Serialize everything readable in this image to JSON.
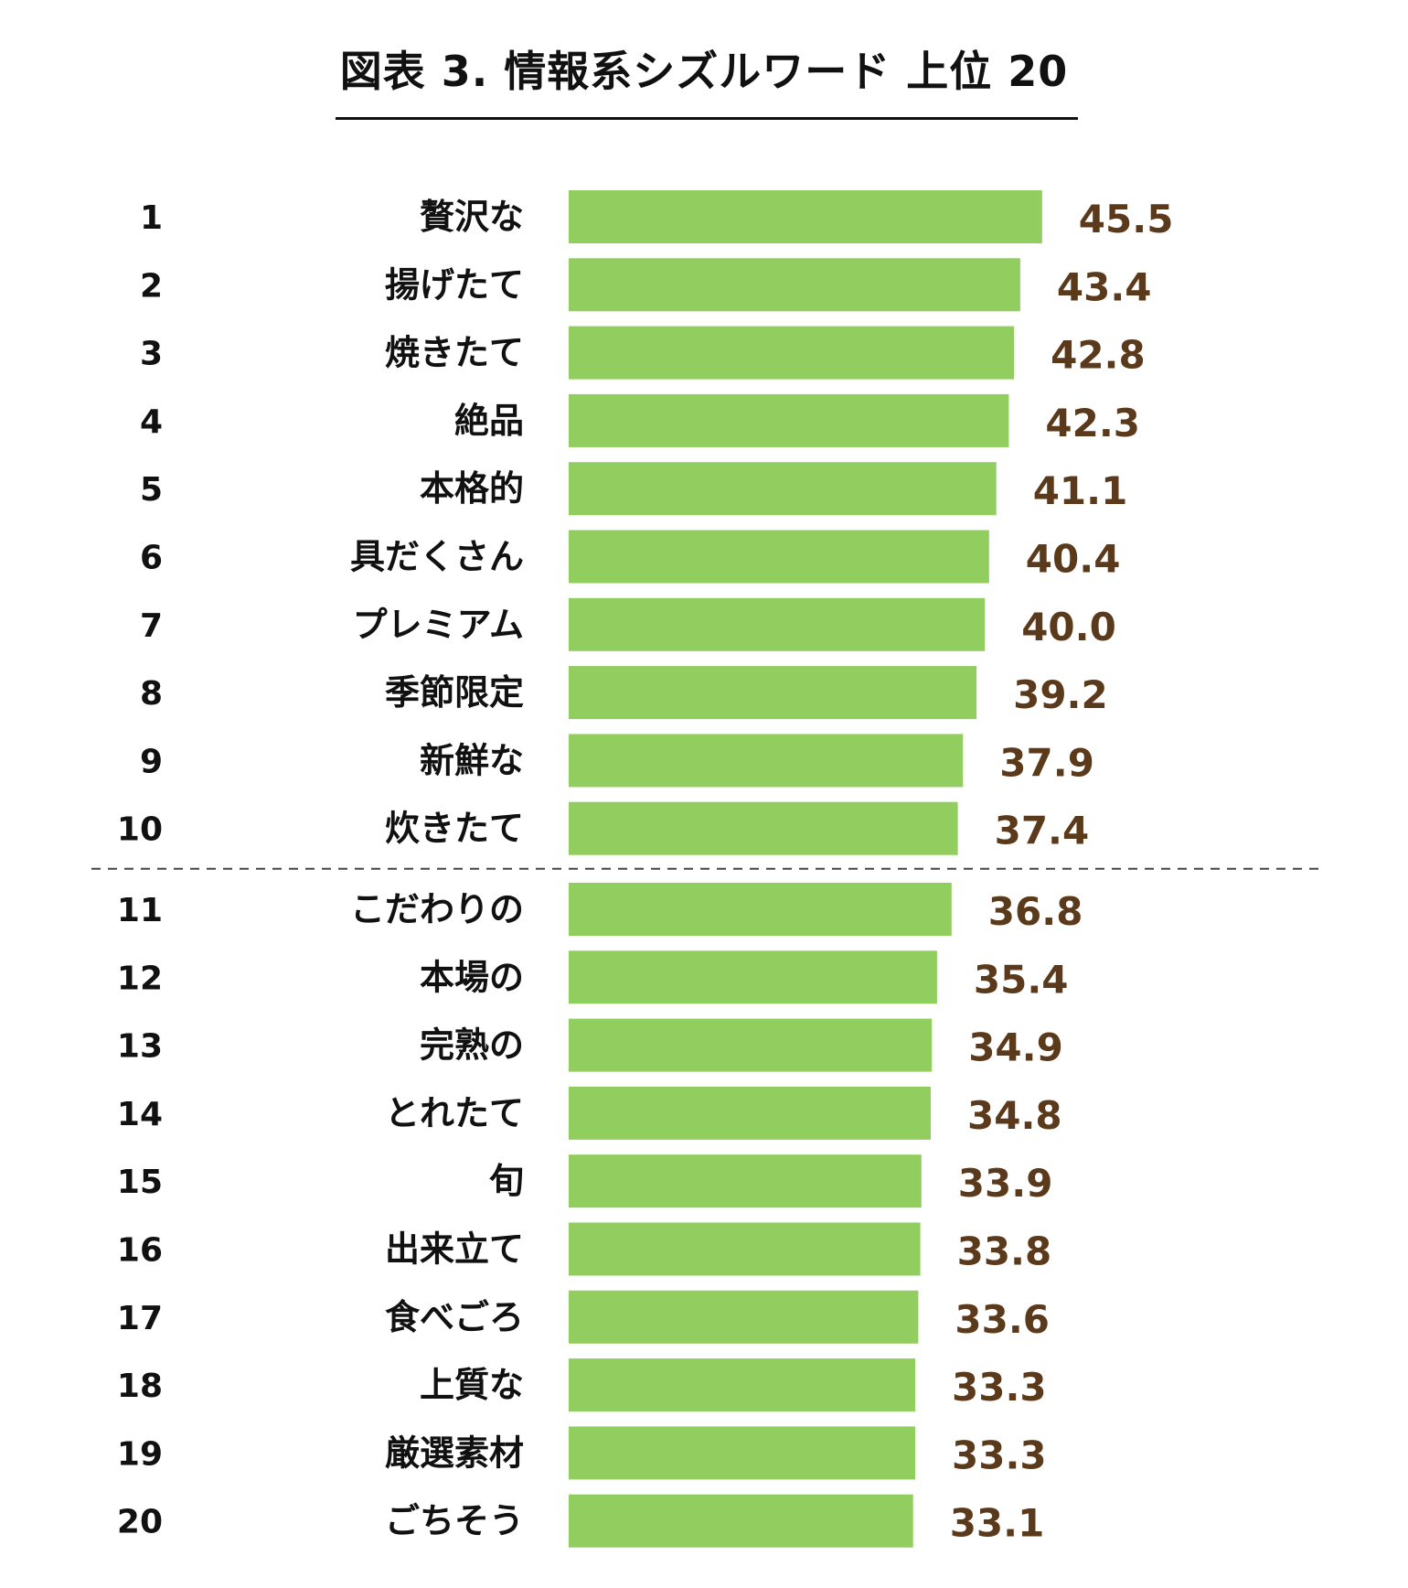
{
  "chart_data": {
    "type": "bar",
    "orientation": "horizontal",
    "title": "図表 3. 情報系シズルワード 上位 20",
    "ranks": [
      "1",
      "2",
      "3",
      "4",
      "5",
      "6",
      "7",
      "8",
      "9",
      "10",
      "11",
      "12",
      "13",
      "14",
      "15",
      "16",
      "17",
      "18",
      "19",
      "20"
    ],
    "categories": [
      "贅沢な",
      "揚げたて",
      "焼きたて",
      "絶品",
      "本格的",
      "具だくさん",
      "プレミアム",
      "季節限定",
      "新鮮な",
      "炊きたて",
      "こだわりの",
      "本場の",
      "完熟の",
      "とれたて",
      "旬",
      "出来立て",
      "食べごろ",
      "上質な",
      "厳選素材",
      "ごちそう"
    ],
    "values": [
      45.5,
      43.4,
      42.8,
      42.3,
      41.1,
      40.4,
      40.0,
      39.2,
      37.9,
      37.4,
      36.8,
      35.4,
      34.9,
      34.8,
      33.9,
      33.8,
      33.6,
      33.3,
      33.3,
      33.1
    ],
    "value_labels": [
      "45.5",
      "43.4",
      "42.8",
      "42.3",
      "41.1",
      "40.4",
      "40.0",
      "39.2",
      "37.9",
      "37.4",
      "36.8",
      "35.4",
      "34.9",
      "34.8",
      "33.9",
      "33.8",
      "33.6",
      "33.3",
      "33.3",
      "33.1"
    ],
    "divider_after_rank": 10,
    "bar_color": "#92cd5f",
    "value_label_color": "#5b3a1c",
    "text_color": "#111111"
  }
}
